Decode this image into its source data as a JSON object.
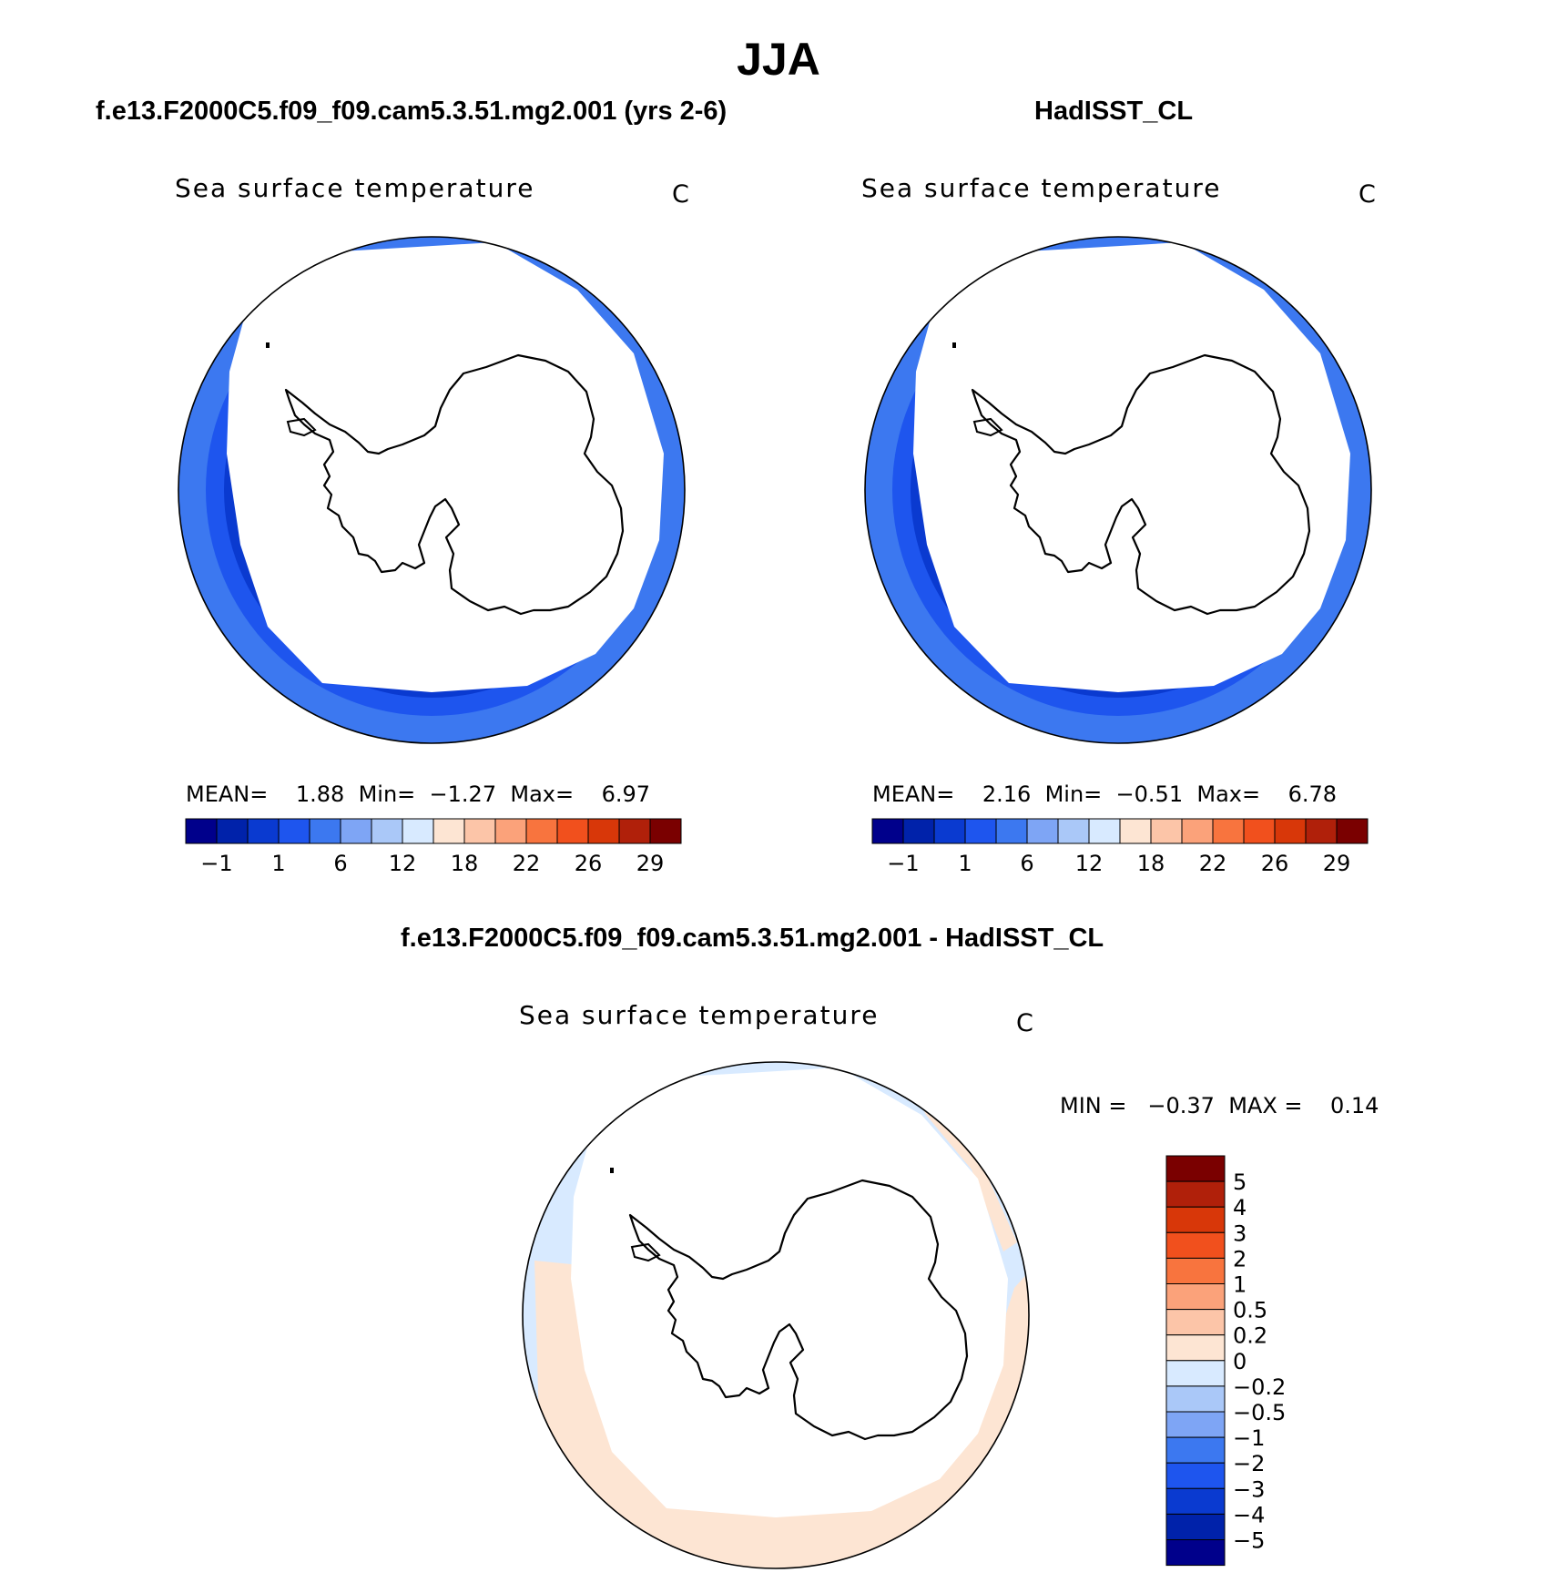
{
  "title": "JJA",
  "panels": [
    {
      "id": "model",
      "title": "f.e13.F2000C5.f09_f09.cam5.3.51.mg2.001 (yrs 2-6)",
      "variable": "Sea surface temperature",
      "units": "C",
      "stats": {
        "mean_label": "MEAN=",
        "mean": "1.88",
        "min_label": "Min=",
        "min": "−1.27",
        "max_label": "Max=",
        "max": "6.97"
      }
    },
    {
      "id": "obs",
      "title": "HadISST_CL",
      "variable": "Sea surface temperature",
      "units": "C",
      "stats": {
        "mean_label": "MEAN=",
        "mean": "2.16",
        "min_label": "Min=",
        "min": "−0.51",
        "max_label": "Max=",
        "max": "6.78"
      }
    },
    {
      "id": "diff",
      "title": "f.e13.F2000C5.f09_f09.cam5.3.51.mg2.001 - HadISST_CL",
      "variable": "Sea surface temperature",
      "units": "C",
      "stats": {
        "min_label": "MIN =",
        "min": "−0.37",
        "max_label": "MAX =",
        "max": "0.14"
      }
    }
  ],
  "colorbars": {
    "abs": {
      "colors": [
        "#00008b",
        "#0022aa",
        "#0a3ad0",
        "#1e55ee",
        "#3c78f0",
        "#7ea5f5",
        "#aac8f8",
        "#d8eaff",
        "#fde5d3",
        "#fcc5a8",
        "#fba27a",
        "#f8743e",
        "#f1501d",
        "#d83709",
        "#b0200a",
        "#7a0000"
      ],
      "ticks": [
        "−1",
        "1",
        "6",
        "12",
        "18",
        "22",
        "26",
        "29"
      ]
    },
    "diff": {
      "colors": [
        "#7a0000",
        "#b0200a",
        "#d83709",
        "#f1501d",
        "#f8743e",
        "#fba27a",
        "#fcc5a8",
        "#fde5d3",
        "#d8eaff",
        "#aac8f8",
        "#7ea5f5",
        "#3c78f0",
        "#1e55ee",
        "#0a3ad0",
        "#0022aa",
        "#00008b"
      ],
      "ticks": [
        "5",
        "4",
        "3",
        "2",
        "1",
        "0.5",
        "0.2",
        "0",
        "−0.2",
        "−0.5",
        "−1",
        "−2",
        "−3",
        "−4",
        "−5"
      ]
    }
  }
}
